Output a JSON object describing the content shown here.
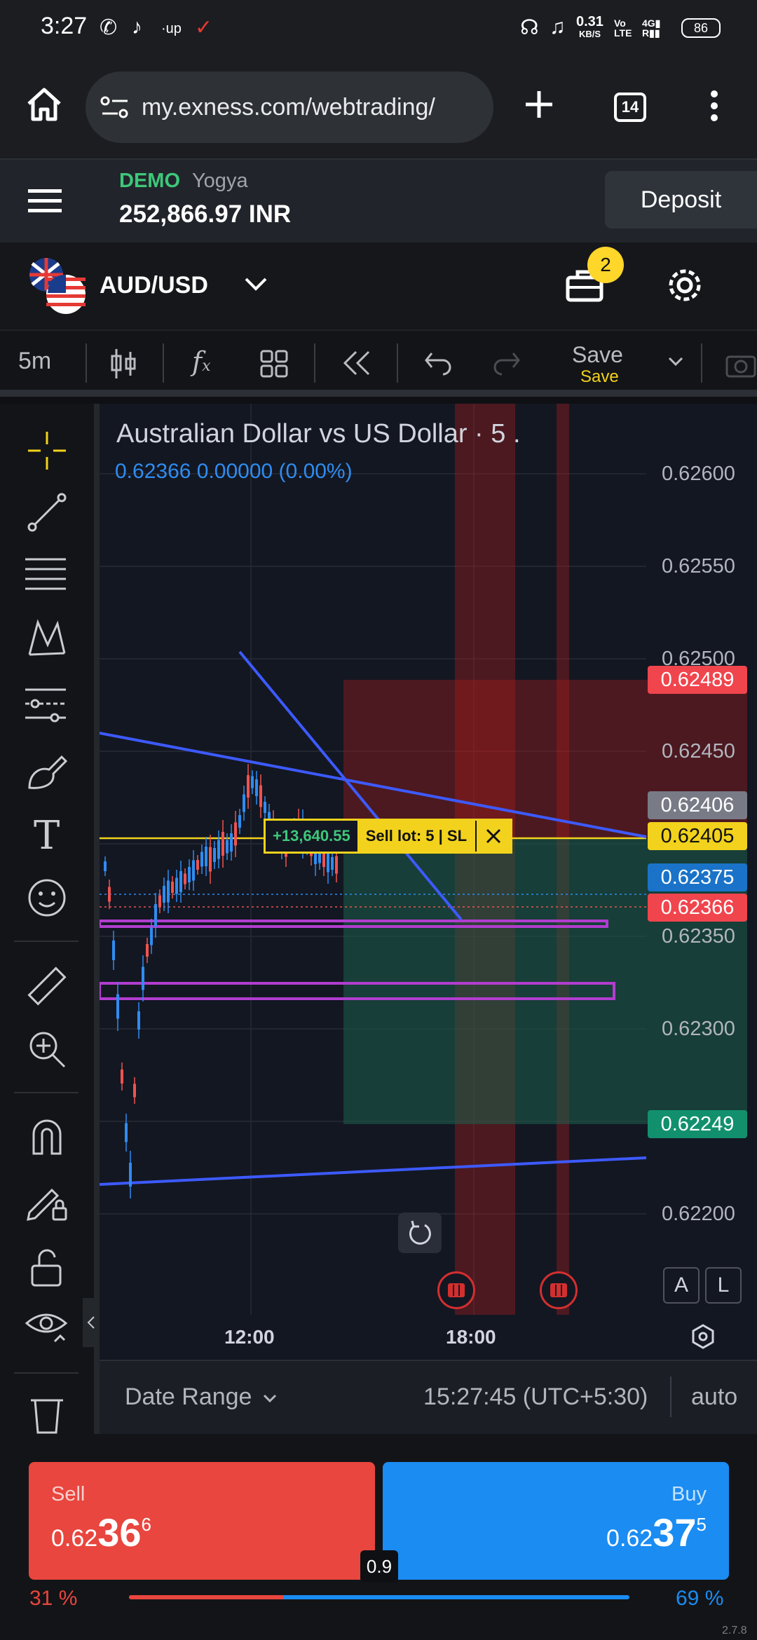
{
  "status_bar": {
    "time": "3:27",
    "net_speed_value": "0.31",
    "net_speed_unit": "KB/S",
    "battery": "86"
  },
  "browser": {
    "url": "my.exness.com/webtrading/",
    "tab_count": "14"
  },
  "account": {
    "mode": "DEMO",
    "name": "Yogya",
    "balance": "252,866.97 INR",
    "deposit_label": "Deposit"
  },
  "symbol": {
    "name": "AUD/USD",
    "positions_count": "2"
  },
  "toolbar": {
    "interval": "5m",
    "save_label": "Save",
    "save_sublabel": "Save"
  },
  "chart": {
    "title": "Australian Dollar vs US Dollar · 5 .",
    "price_line": "0.62366  0.00000 (0.00%)",
    "price_ticks": [
      "0.62600",
      "0.62550",
      "0.62500",
      "0.62450",
      "0.62350",
      "0.62300",
      "0.62200"
    ],
    "flags": {
      "take_profit_top": "0.62489",
      "line_alert": "0.62406",
      "entry": "0.62405",
      "ask": "0.62375",
      "bid": "0.62366",
      "take_profit": "0.62249"
    },
    "time_ticks": [
      "12:00",
      "18:00"
    ],
    "position_pnl": "+13,640.55",
    "position_label": "Sell lot: 5 | SL",
    "scale_buttons": [
      "A",
      "L"
    ],
    "colors": {
      "up": "#2f8cf0",
      "down": "#ef5350",
      "trendline": "#3d5afe",
      "zone": "#9c27b0",
      "entry_line": "#f2d21c"
    }
  },
  "chart_footer": {
    "date_range": "Date Range",
    "clock": "15:27:45 (UTC+5:30)",
    "scale_mode": "auto"
  },
  "trade": {
    "sell_label": "Sell",
    "sell_price_small": "0.62",
    "sell_price_big": "36",
    "sell_price_sup": "6",
    "buy_label": "Buy",
    "buy_price_small": "0.62",
    "buy_price_big": "37",
    "buy_price_sup": "5",
    "spread": "0.9",
    "sell_percent": "31 %",
    "buy_percent": "69 %",
    "sell_ratio": 0.31
  },
  "version": "2.7.8"
}
